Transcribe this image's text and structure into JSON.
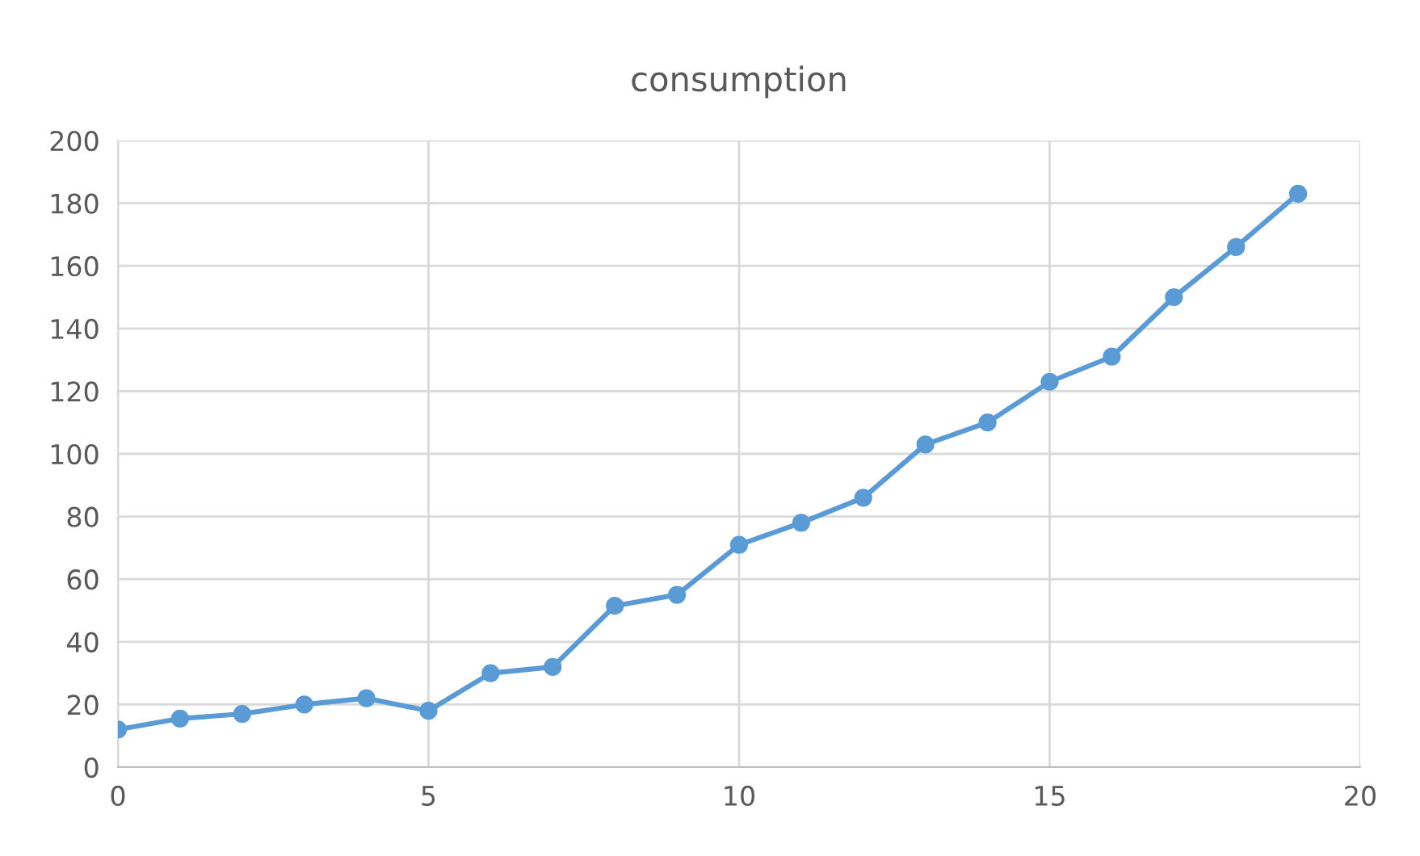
{
  "chart_data": {
    "type": "line",
    "title": "consumption",
    "x": [
      0,
      1,
      2,
      3,
      4,
      5,
      6,
      7,
      8,
      9,
      10,
      11,
      12,
      13,
      14,
      15,
      16,
      17,
      18,
      19
    ],
    "series": [
      {
        "color": "#5b9bd5",
        "values": [
          12,
          15.5,
          17,
          20,
          22,
          18,
          30,
          32,
          51.5,
          55,
          71,
          78,
          86,
          103,
          110,
          123,
          131,
          150,
          166,
          183
        ]
      }
    ],
    "xlim": [
      0,
      20
    ],
    "xticks": [
      0,
      5,
      10,
      15,
      20
    ],
    "ylim": [
      0,
      200
    ],
    "yticks": [
      0,
      20,
      40,
      60,
      80,
      100,
      120,
      140,
      160,
      180,
      200
    ],
    "grid": true,
    "marker": "circle",
    "line_style": "solid"
  }
}
